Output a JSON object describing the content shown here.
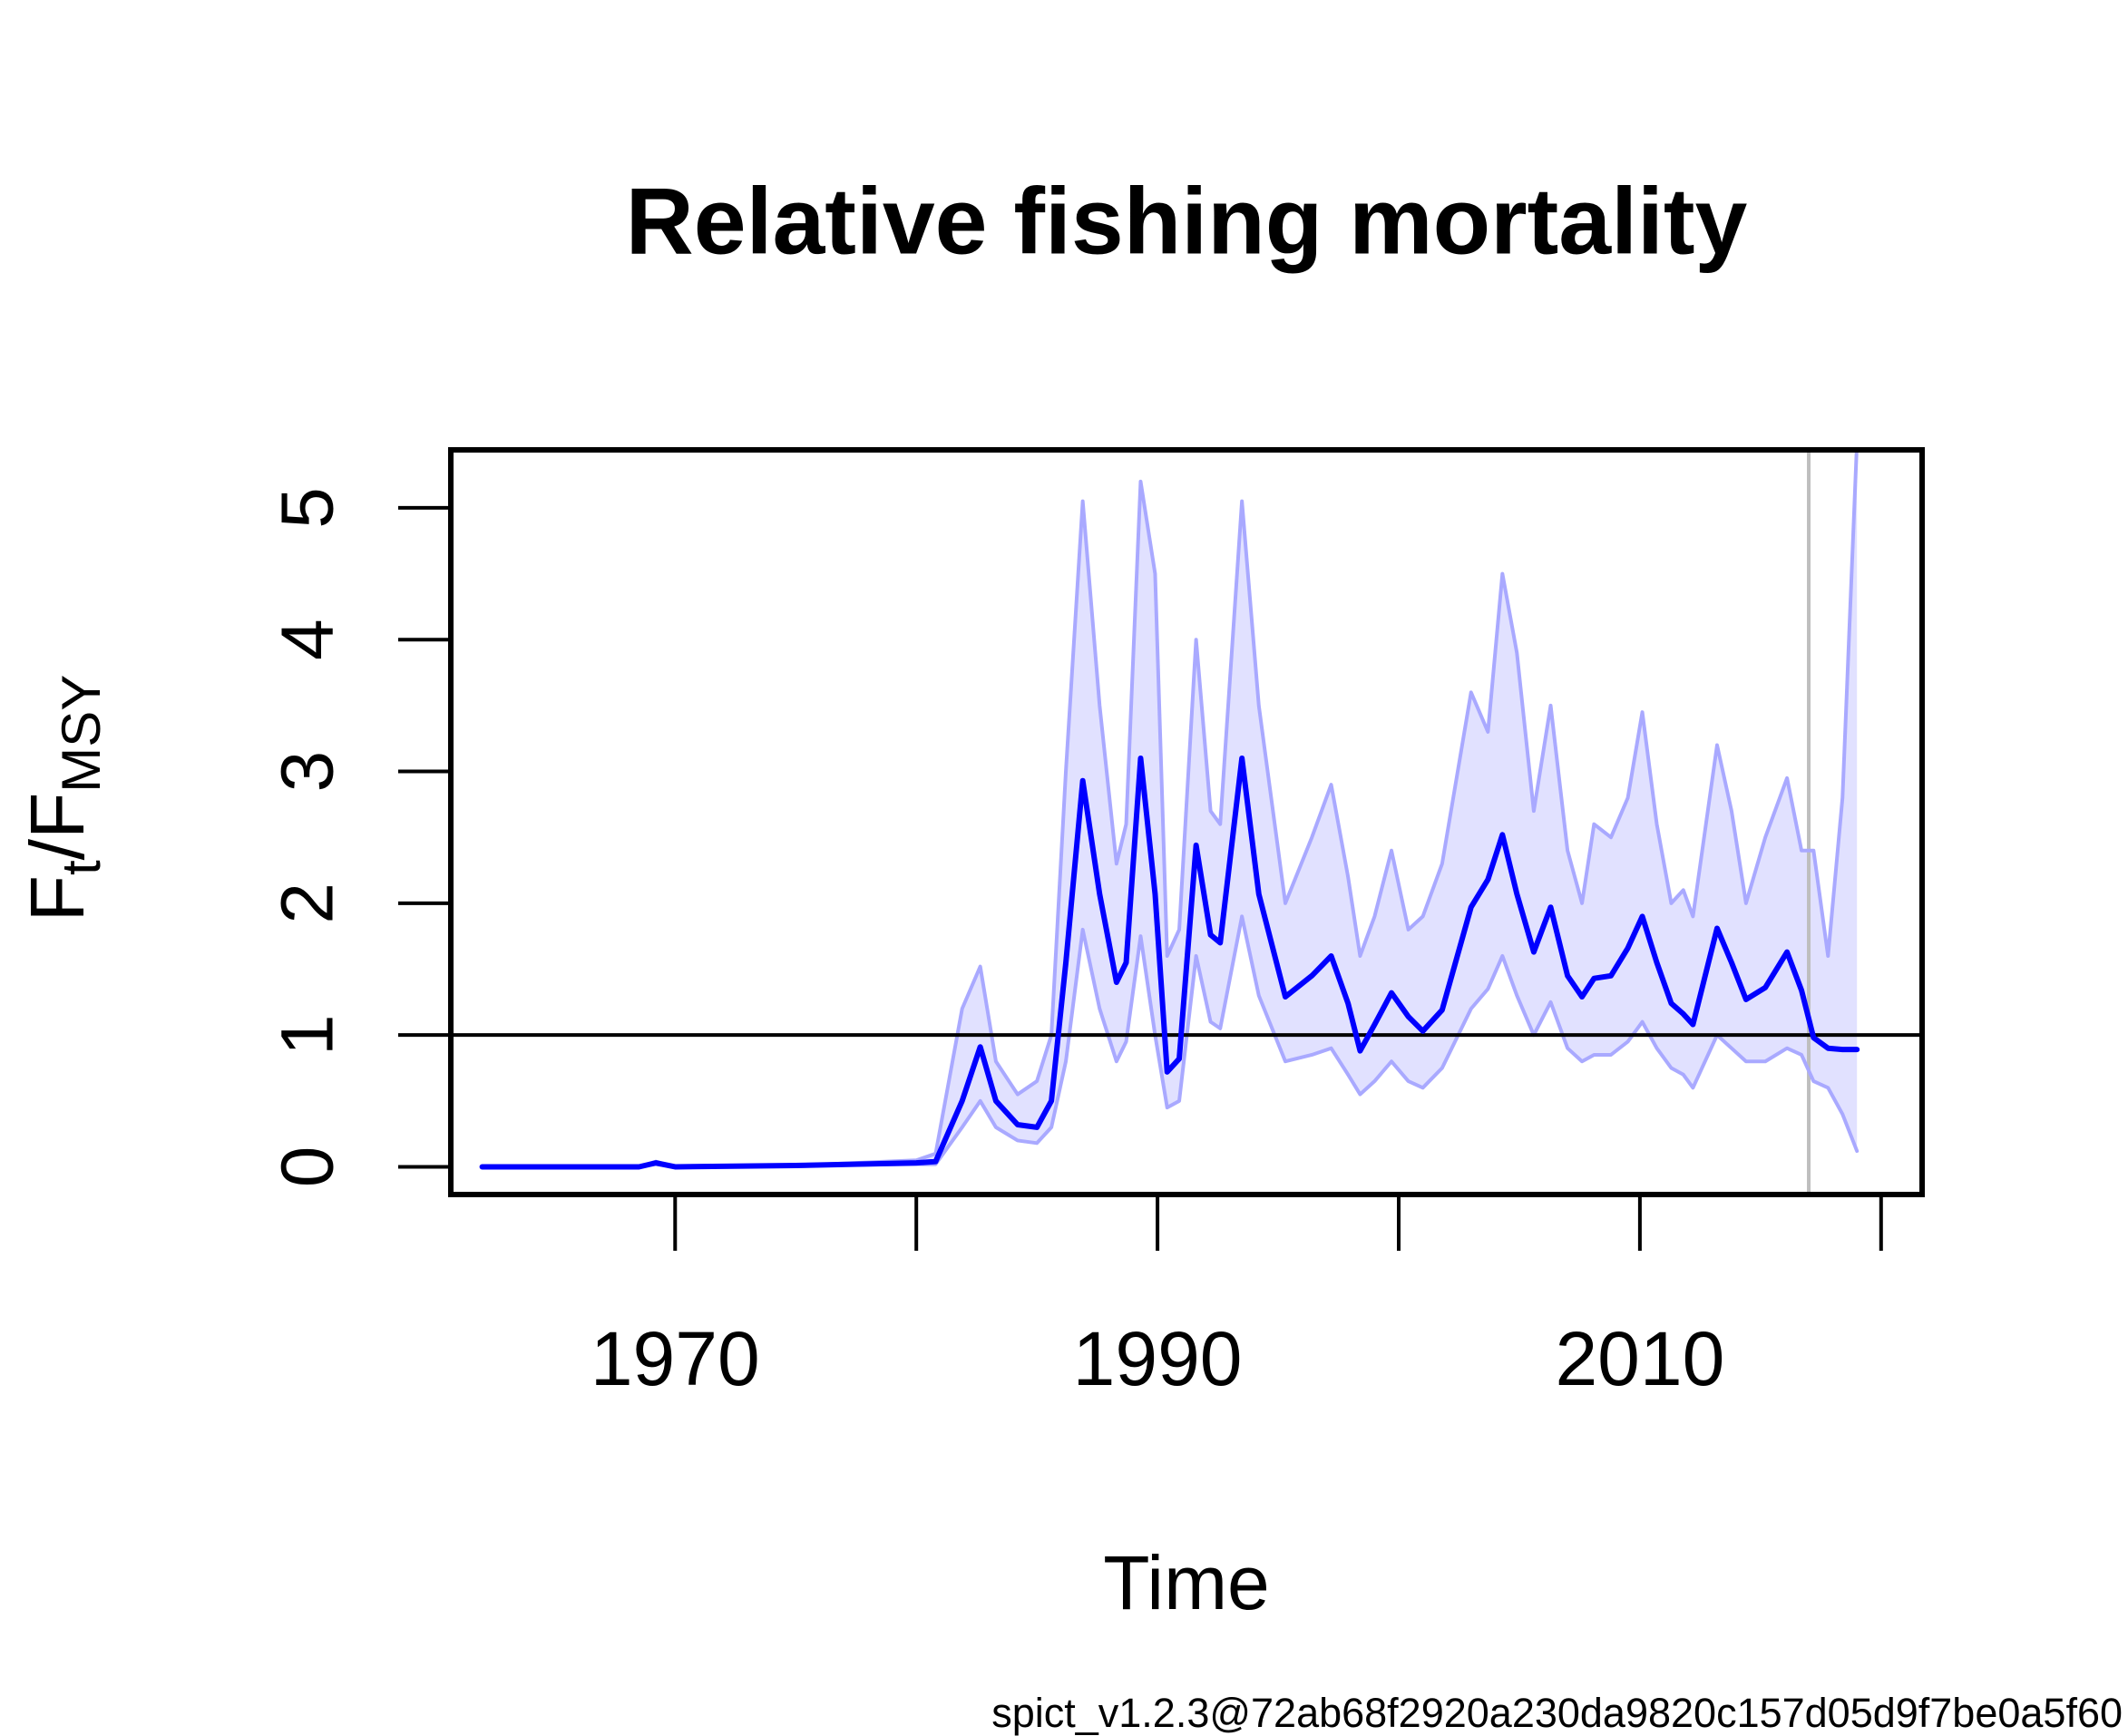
{
  "chart_data": {
    "type": "line",
    "title": "Relative fishing mortality",
    "xlabel": "Time",
    "ylabel": [
      "F",
      "t",
      "/F",
      "MSY"
    ],
    "footer": "spict_v1.2.3@72ab68f2920a230da9820c157d05d9f7be0a5f60",
    "xlim": [
      1960.7,
      2021.7
    ],
    "ylim": [
      -0.21,
      5.44
    ],
    "xticks": [
      1970,
      {
        "value": 1980,
        "label": null
      },
      1990,
      {
        "value": 2000,
        "label": null
      },
      2010,
      {
        "value": 2020,
        "label": null
      }
    ],
    "yticks": [
      0,
      1,
      2,
      3,
      4,
      5
    ],
    "hline": 1,
    "hline_color": "#000000",
    "vline": 2017,
    "vline_color": "#bebebe",
    "color": "#0000ff",
    "band_line_color": "#a9a9ff",
    "band_fill_color": "#e1e1ff",
    "x": [
      1962,
      1965,
      1968.5,
      1969.2,
      1970,
      1975,
      1980,
      1980.8,
      1981.9,
      1982.65,
      1983.3,
      1984.2,
      1985,
      1985.6,
      1986.2,
      1986.9,
      1987.6,
      1988.3,
      1988.7,
      1989.3,
      1989.9,
      1990.4,
      1990.9,
      1991.6,
      1992.2,
      1992.6,
      1993.5,
      1994.2,
      1995.3,
      1996.4,
      1997.2,
      1997.9,
      1998.4,
      1999,
      1999.7,
      2000.4,
      2001,
      2001.8,
      2003,
      2003.7,
      2004.3,
      2004.9,
      2005.6,
      2006.3,
      2007,
      2007.6,
      2008.1,
      2008.8,
      2009.5,
      2010.1,
      2010.7,
      2011.3,
      2011.8,
      2012.2,
      2013.2,
      2013.8,
      2014.4,
      2015.2,
      2016.1,
      2016.7,
      2017.2,
      2017.8,
      2018.4,
      2019
    ],
    "values": [
      0,
      0,
      0,
      0.03,
      0,
      0.01,
      0.03,
      0.04,
      0.5,
      0.91,
      0.5,
      0.32,
      0.3,
      0.5,
      1.55,
      2.93,
      2.07,
      1.4,
      1.55,
      3.1,
      2.07,
      0.72,
      0.82,
      2.44,
      1.76,
      1.7,
      3.1,
      2.07,
      1.29,
      1.45,
      1.6,
      1.24,
      0.88,
      1.08,
      1.32,
      1.14,
      1.03,
      1.19,
      1.97,
      2.18,
      2.52,
      2.07,
      1.63,
      1.97,
      1.45,
      1.29,
      1.43,
      1.45,
      1.66,
      1.9,
      1.55,
      1.24,
      1.16,
      1.08,
      1.81,
      1.55,
      1.27,
      1.36,
      1.63,
      1.34,
      0.98,
      0.9,
      0.89,
      0.89
    ],
    "upper": [
      0,
      0,
      0,
      0.04,
      0,
      0.01,
      0.05,
      0.1,
      1.2,
      1.52,
      0.8,
      0.55,
      0.65,
      1.0,
      3.0,
      5.05,
      3.5,
      2.3,
      2.6,
      5.2,
      4.5,
      1.6,
      1.8,
      4.0,
      2.7,
      2.6,
      5.05,
      3.5,
      2.0,
      2.5,
      2.9,
      2.2,
      1.6,
      1.9,
      2.4,
      1.8,
      1.9,
      2.3,
      3.6,
      3.3,
      4.5,
      3.9,
      2.7,
      3.5,
      2.4,
      2.0,
      2.6,
      2.5,
      2.8,
      3.45,
      2.6,
      2.0,
      2.1,
      1.9,
      3.2,
      2.7,
      2.0,
      2.5,
      2.95,
      2.4,
      2.4,
      1.6,
      2.8,
      5.5
    ],
    "lower": [
      0,
      0,
      0,
      0.02,
      0,
      0.01,
      0.02,
      0.02,
      0.3,
      0.5,
      0.3,
      0.2,
      0.18,
      0.3,
      0.8,
      1.8,
      1.2,
      0.8,
      0.95,
      1.75,
      1.0,
      0.45,
      0.5,
      1.6,
      1.1,
      1.05,
      1.9,
      1.3,
      0.8,
      0.85,
      0.9,
      0.7,
      0.55,
      0.65,
      0.8,
      0.65,
      0.6,
      0.75,
      1.2,
      1.35,
      1.6,
      1.3,
      1.0,
      1.25,
      0.9,
      0.8,
      0.85,
      0.85,
      0.95,
      1.1,
      0.9,
      0.75,
      0.7,
      0.6,
      1.0,
      0.9,
      0.8,
      0.8,
      0.9,
      0.85,
      0.65,
      0.6,
      0.4,
      0.12
    ]
  }
}
